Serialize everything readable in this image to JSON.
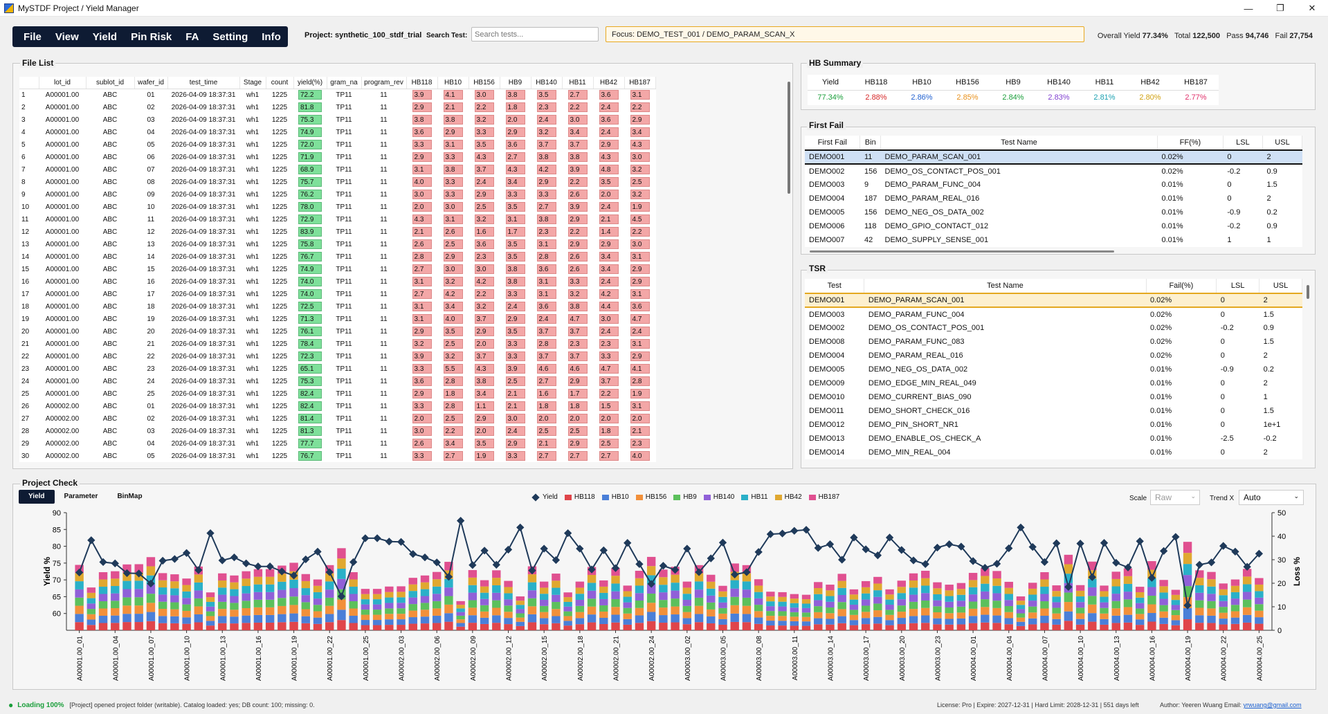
{
  "window": {
    "title": "MySTDF Project / Yield Manager",
    "min": "—",
    "max": "❐",
    "close": "✕"
  },
  "menu": [
    "File",
    "View",
    "Yield",
    "Pin Risk",
    "FA",
    "Setting",
    "Info"
  ],
  "toolbar": {
    "project": "Project: synthetic_100_stdf_trial",
    "search_label": "Search Test:",
    "search_placeholder": "Search tests...",
    "focus": "Focus: DEMO_TEST_001 / DEMO_PARAM_SCAN_X",
    "overall_label": "Overall Yield",
    "overall": "77.34%",
    "total_label": "Total",
    "total": "122,500",
    "pass_label": "Pass",
    "pass": "94,746",
    "fail_label": "Fail",
    "fail": "27,754"
  },
  "file_list": {
    "title": "File List",
    "columns": [
      "lot_id",
      "sublot_id",
      "wafer_id",
      "test_time",
      "Stage",
      "count",
      "yield(%)",
      "gram_na",
      "program_rev",
      "HB118",
      "HB10",
      "HB156",
      "HB9",
      "HB140",
      "HB11",
      "HB42",
      "HB187"
    ],
    "rows": [
      [
        "1",
        "A00001.00",
        "ABC",
        "01",
        "2026-04-09 18:37:31",
        "wh1",
        "1225",
        "72.2",
        "TP11",
        "11",
        "3.9",
        "4.1",
        "3.0",
        "3.8",
        "3.5",
        "2.7",
        "3.6",
        "3.1"
      ],
      [
        "2",
        "A00001.00",
        "ABC",
        "02",
        "2026-04-09 18:37:31",
        "wh1",
        "1225",
        "81.8",
        "TP11",
        "11",
        "2.9",
        "2.1",
        "2.2",
        "1.8",
        "2.3",
        "2.2",
        "2.4",
        "2.2"
      ],
      [
        "3",
        "A00001.00",
        "ABC",
        "03",
        "2026-04-09 18:37:31",
        "wh1",
        "1225",
        "75.3",
        "TP11",
        "11",
        "3.8",
        "3.8",
        "3.2",
        "2.0",
        "2.4",
        "3.0",
        "3.6",
        "2.9"
      ],
      [
        "4",
        "A00001.00",
        "ABC",
        "04",
        "2026-04-09 18:37:31",
        "wh1",
        "1225",
        "74.9",
        "TP11",
        "11",
        "3.6",
        "2.9",
        "3.3",
        "2.9",
        "3.2",
        "3.4",
        "2.4",
        "3.4"
      ],
      [
        "5",
        "A00001.00",
        "ABC",
        "05",
        "2026-04-09 18:37:31",
        "wh1",
        "1225",
        "72.0",
        "TP11",
        "11",
        "3.3",
        "3.1",
        "3.5",
        "3.6",
        "3.7",
        "3.7",
        "2.9",
        "4.3"
      ],
      [
        "6",
        "A00001.00",
        "ABC",
        "06",
        "2026-04-09 18:37:31",
        "wh1",
        "1225",
        "71.9",
        "TP11",
        "11",
        "2.9",
        "3.3",
        "4.3",
        "2.7",
        "3.8",
        "3.8",
        "4.3",
        "3.0"
      ],
      [
        "7",
        "A00001.00",
        "ABC",
        "07",
        "2026-04-09 18:37:31",
        "wh1",
        "1225",
        "68.9",
        "TP11",
        "11",
        "3.1",
        "3.8",
        "3.7",
        "4.3",
        "4.2",
        "3.9",
        "4.8",
        "3.2"
      ],
      [
        "8",
        "A00001.00",
        "ABC",
        "08",
        "2026-04-09 18:37:31",
        "wh1",
        "1225",
        "75.7",
        "TP11",
        "11",
        "4.0",
        "3.3",
        "2.4",
        "3.4",
        "2.9",
        "2.2",
        "3.5",
        "2.5"
      ],
      [
        "9",
        "A00001.00",
        "ABC",
        "09",
        "2026-04-09 18:37:31",
        "wh1",
        "1225",
        "76.2",
        "TP11",
        "11",
        "3.0",
        "3.3",
        "2.9",
        "3.3",
        "3.3",
        "2.6",
        "2.0",
        "3.2"
      ],
      [
        "10",
        "A00001.00",
        "ABC",
        "10",
        "2026-04-09 18:37:31",
        "wh1",
        "1225",
        "78.0",
        "TP11",
        "11",
        "2.0",
        "3.0",
        "2.5",
        "3.5",
        "2.7",
        "3.9",
        "2.4",
        "1.9"
      ],
      [
        "11",
        "A00001.00",
        "ABC",
        "11",
        "2026-04-09 18:37:31",
        "wh1",
        "1225",
        "72.9",
        "TP11",
        "11",
        "4.3",
        "3.1",
        "3.2",
        "3.1",
        "3.8",
        "2.9",
        "2.1",
        "4.5"
      ],
      [
        "12",
        "A00001.00",
        "ABC",
        "12",
        "2026-04-09 18:37:31",
        "wh1",
        "1225",
        "83.9",
        "TP11",
        "11",
        "2.1",
        "2.6",
        "1.6",
        "1.7",
        "2.3",
        "2.2",
        "1.4",
        "2.2"
      ],
      [
        "13",
        "A00001.00",
        "ABC",
        "13",
        "2026-04-09 18:37:31",
        "wh1",
        "1225",
        "75.8",
        "TP11",
        "11",
        "2.6",
        "2.5",
        "3.6",
        "3.5",
        "3.1",
        "2.9",
        "2.9",
        "3.0"
      ],
      [
        "14",
        "A00001.00",
        "ABC",
        "14",
        "2026-04-09 18:37:31",
        "wh1",
        "1225",
        "76.7",
        "TP11",
        "11",
        "2.8",
        "2.9",
        "2.3",
        "3.5",
        "2.8",
        "2.6",
        "3.4",
        "3.1"
      ],
      [
        "15",
        "A00001.00",
        "ABC",
        "15",
        "2026-04-09 18:37:31",
        "wh1",
        "1225",
        "74.9",
        "TP11",
        "11",
        "2.7",
        "3.0",
        "3.0",
        "3.8",
        "3.6",
        "2.6",
        "3.4",
        "2.9"
      ],
      [
        "16",
        "A00001.00",
        "ABC",
        "16",
        "2026-04-09 18:37:31",
        "wh1",
        "1225",
        "74.0",
        "TP11",
        "11",
        "3.1",
        "3.2",
        "4.2",
        "3.8",
        "3.1",
        "3.3",
        "2.4",
        "2.9"
      ],
      [
        "17",
        "A00001.00",
        "ABC",
        "17",
        "2026-04-09 18:37:31",
        "wh1",
        "1225",
        "74.0",
        "TP11",
        "11",
        "2.7",
        "4.2",
        "2.2",
        "3.3",
        "3.1",
        "3.2",
        "4.2",
        "3.1"
      ],
      [
        "18",
        "A00001.00",
        "ABC",
        "18",
        "2026-04-09 18:37:31",
        "wh1",
        "1225",
        "72.5",
        "TP11",
        "11",
        "3.1",
        "3.4",
        "3.2",
        "2.4",
        "3.6",
        "3.8",
        "4.4",
        "3.6"
      ],
      [
        "19",
        "A00001.00",
        "ABC",
        "19",
        "2026-04-09 18:37:31",
        "wh1",
        "1225",
        "71.3",
        "TP11",
        "11",
        "3.1",
        "4.0",
        "3.7",
        "2.9",
        "2.4",
        "4.7",
        "3.0",
        "4.7"
      ],
      [
        "20",
        "A00001.00",
        "ABC",
        "20",
        "2026-04-09 18:37:31",
        "wh1",
        "1225",
        "76.1",
        "TP11",
        "11",
        "2.9",
        "3.5",
        "2.9",
        "3.5",
        "3.7",
        "3.7",
        "2.4",
        "2.4"
      ],
      [
        "21",
        "A00001.00",
        "ABC",
        "21",
        "2026-04-09 18:37:31",
        "wh1",
        "1225",
        "78.4",
        "TP11",
        "11",
        "3.2",
        "2.5",
        "2.0",
        "3.3",
        "2.8",
        "2.3",
        "2.3",
        "3.1"
      ],
      [
        "22",
        "A00001.00",
        "ABC",
        "22",
        "2026-04-09 18:37:31",
        "wh1",
        "1225",
        "72.3",
        "TP11",
        "11",
        "3.9",
        "3.2",
        "3.7",
        "3.3",
        "3.7",
        "3.7",
        "3.3",
        "2.9"
      ],
      [
        "23",
        "A00001.00",
        "ABC",
        "23",
        "2026-04-09 18:37:31",
        "wh1",
        "1225",
        "65.1",
        "TP11",
        "11",
        "3.3",
        "5.5",
        "4.3",
        "3.9",
        "4.6",
        "4.6",
        "4.7",
        "4.1"
      ],
      [
        "24",
        "A00001.00",
        "ABC",
        "24",
        "2026-04-09 18:37:31",
        "wh1",
        "1225",
        "75.3",
        "TP11",
        "11",
        "3.6",
        "2.8",
        "3.8",
        "2.5",
        "2.7",
        "2.9",
        "3.7",
        "2.8"
      ],
      [
        "25",
        "A00001.00",
        "ABC",
        "25",
        "2026-04-09 18:37:31",
        "wh1",
        "1225",
        "82.4",
        "TP11",
        "11",
        "2.9",
        "1.8",
        "3.4",
        "2.1",
        "1.6",
        "1.7",
        "2.2",
        "1.9"
      ],
      [
        "26",
        "A00002.00",
        "ABC",
        "01",
        "2026-04-09 18:37:31",
        "wh1",
        "1225",
        "82.4",
        "TP11",
        "11",
        "3.3",
        "2.8",
        "1.1",
        "2.1",
        "1.8",
        "1.8",
        "1.5",
        "3.1"
      ],
      [
        "27",
        "A00002.00",
        "ABC",
        "02",
        "2026-04-09 18:37:31",
        "wh1",
        "1225",
        "81.4",
        "TP11",
        "11",
        "2.0",
        "2.5",
        "2.9",
        "3.0",
        "2.0",
        "2.0",
        "2.0",
        "2.0"
      ],
      [
        "28",
        "A00002.00",
        "ABC",
        "03",
        "2026-04-09 18:37:31",
        "wh1",
        "1225",
        "81.3",
        "TP11",
        "11",
        "3.0",
        "2.2",
        "2.0",
        "2.4",
        "2.5",
        "2.5",
        "1.8",
        "2.1"
      ],
      [
        "29",
        "A00002.00",
        "ABC",
        "04",
        "2026-04-09 18:37:31",
        "wh1",
        "1225",
        "77.7",
        "TP11",
        "11",
        "2.6",
        "3.4",
        "3.5",
        "2.9",
        "2.1",
        "2.9",
        "2.5",
        "2.3"
      ],
      [
        "30",
        "A00002.00",
        "ABC",
        "05",
        "2026-04-09 18:37:31",
        "wh1",
        "1225",
        "76.7",
        "TP11",
        "11",
        "3.3",
        "2.7",
        "1.9",
        "3.3",
        "2.7",
        "2.7",
        "2.7",
        "4.0"
      ]
    ]
  },
  "hb_summary": {
    "title": "HB Summary",
    "headers": [
      "Yield",
      "HB118",
      "HB10",
      "HB156",
      "HB9",
      "HB140",
      "HB11",
      "HB42",
      "HB187"
    ],
    "values": [
      "77.34%",
      "2.88%",
      "2.86%",
      "2.85%",
      "2.84%",
      "2.83%",
      "2.81%",
      "2.80%",
      "2.77%"
    ],
    "colors": [
      "#1a9e3a",
      "#d62728",
      "#2060d0",
      "#e8901a",
      "#1a9e3a",
      "#8040d0",
      "#1aa0b0",
      "#d0a010",
      "#e0306a"
    ]
  },
  "first_fail": {
    "title": "First Fail",
    "headers": [
      "First Fail",
      "Bin",
      "Test Name",
      "FF(%)",
      "LSL",
      "USL"
    ],
    "rows": [
      [
        "DEMO001",
        "11",
        "DEMO_PARAM_SCAN_001",
        "0.02%",
        "0",
        "2"
      ],
      [
        "DEMO002",
        "156",
        "DEMO_OS_CONTACT_POS_001",
        "0.02%",
        "-0.2",
        "0.9"
      ],
      [
        "DEMO003",
        "9",
        "DEMO_PARAM_FUNC_004",
        "0.01%",
        "0",
        "1.5"
      ],
      [
        "DEMO004",
        "187",
        "DEMO_PARAM_REAL_016",
        "0.01%",
        "0",
        "2"
      ],
      [
        "DEMO005",
        "156",
        "DEMO_NEG_OS_DATA_002",
        "0.01%",
        "-0.9",
        "0.2"
      ],
      [
        "DEMO006",
        "118",
        "DEMO_GPIO_CONTACT_012",
        "0.01%",
        "-0.2",
        "0.9"
      ],
      [
        "DEMO007",
        "42",
        "DEMO_SUPPLY_SENSE_001",
        "0.01%",
        "1",
        "1"
      ]
    ]
  },
  "tsr": {
    "title": "TSR",
    "headers": [
      "Test",
      "Test Name",
      "Fail(%)",
      "LSL",
      "USL"
    ],
    "rows": [
      [
        "DEMO001",
        "DEMO_PARAM_SCAN_001",
        "0.02%",
        "0",
        "2"
      ],
      [
        "DEMO003",
        "DEMO_PARAM_FUNC_004",
        "0.02%",
        "0",
        "1.5"
      ],
      [
        "DEMO002",
        "DEMO_OS_CONTACT_POS_001",
        "0.02%",
        "-0.2",
        "0.9"
      ],
      [
        "DEMO008",
        "DEMO_PARAM_FUNC_083",
        "0.02%",
        "0",
        "1.5"
      ],
      [
        "DEMO004",
        "DEMO_PARAM_REAL_016",
        "0.02%",
        "0",
        "2"
      ],
      [
        "DEMO005",
        "DEMO_NEG_OS_DATA_002",
        "0.01%",
        "-0.9",
        "0.2"
      ],
      [
        "DEMO009",
        "DEMO_EDGE_MIN_REAL_049",
        "0.01%",
        "0",
        "2"
      ],
      [
        "DEMO010",
        "DEMO_CURRENT_BIAS_090",
        "0.01%",
        "0",
        "1"
      ],
      [
        "DEMO011",
        "DEMO_SHORT_CHECK_016",
        "0.01%",
        "0",
        "1.5"
      ],
      [
        "DEMO012",
        "DEMO_PIN_SHORT_NR1",
        "0.01%",
        "0",
        "1e+1"
      ],
      [
        "DEMO013",
        "DEMO_ENABLE_OS_CHECK_A",
        "0.01%",
        "-2.5",
        "-0.2"
      ],
      [
        "DEMO014",
        "DEMO_MIN_REAL_004",
        "0.01%",
        "0",
        "2"
      ]
    ]
  },
  "project_check": {
    "title": "Project Check",
    "tabs": [
      "Yield",
      "Parameter",
      "BinMap"
    ],
    "scale_label": "Scale",
    "scale_value": "Raw",
    "trend_label": "Trend X",
    "trend_value": "Auto"
  },
  "chart_data": {
    "type": "bar",
    "stacked": true,
    "ylabel": "Yield %",
    "y2label": "Loss %",
    "ylim": [
      55,
      90
    ],
    "y2lim": [
      0,
      50
    ],
    "yticks": [
      60,
      65,
      70,
      75,
      80,
      85,
      90
    ],
    "y2ticks": [
      0,
      10,
      20,
      30,
      40,
      50
    ],
    "legend": [
      "Yield",
      "HB118",
      "HB10",
      "HB156",
      "HB9",
      "HB140",
      "HB11",
      "HB42",
      "HB187"
    ],
    "colors": {
      "Yield": "#1f3a5a",
      "HB118": "#e0454a",
      "HB10": "#4a7fd8",
      "HB156": "#f2903a",
      "HB9": "#5cc05c",
      "HB140": "#9060d8",
      "HB11": "#2ab0c8",
      "HB42": "#e0a830",
      "HB187": "#e05090"
    },
    "xticks": [
      "A00001.00_01",
      "A00001.00_04",
      "A00001.00_07",
      "A00001.00_10",
      "A00001.00_13",
      "A00001.00_16",
      "A00001.00_19",
      "A00001.00_22",
      "A00001.00_25",
      "A00002.00_03",
      "A00002.00_06",
      "A00002.00_09",
      "A00002.00_12",
      "A00002.00_15",
      "A00002.00_18",
      "A00002.00_21",
      "A00002.00_24",
      "A00003.00_02",
      "A00003.00_05",
      "A00003.00_08",
      "A00003.00_11",
      "A00003.00_14",
      "A00003.00_17",
      "A00003.00_20",
      "A00003.00_23",
      "A00004.00_01",
      "A00004.00_04",
      "A00004.00_07",
      "A00004.00_10",
      "A00004.00_13",
      "A00004.00_16",
      "A00004.00_19",
      "A00004.00_22",
      "A00004.00_25"
    ],
    "yield": [
      72.2,
      81.8,
      75.3,
      74.9,
      72.0,
      71.9,
      68.9,
      75.7,
      76.2,
      78.0,
      72.9,
      83.9,
      75.8,
      76.7,
      74.9,
      74.0,
      74.0,
      72.5,
      71.3,
      76.1,
      78.4,
      72.3,
      65.1,
      75.3,
      82.4,
      82.4,
      81.4,
      81.3,
      77.7,
      76.7,
      75.2,
      70.9,
      87.6,
      74.4,
      78.7,
      74.5,
      79.0,
      85.6,
      72.8,
      79.3,
      75.9,
      83.9,
      79.3,
      73.1,
      78.8,
      73.5,
      81.0,
      74.7,
      68.8,
      74.2,
      73.0,
      79.3,
      72.3,
      76.4,
      81.1,
      71.6,
      72.3,
      78.3,
      83.6,
      83.8,
      84.6,
      84.9,
      79.5,
      80.6,
      76.0,
      82.6,
      79.1,
      77.3,
      82.6,
      78.9,
      75.8,
      74.7,
      79.6,
      80.6,
      79.9,
      75.6,
      73.6,
      74.8,
      79.4,
      85.6,
      79.8,
      75.3,
      80.9,
      67.9,
      80.8,
      70.8,
      81.0,
      75.1,
      73.7,
      81.5,
      70.6,
      78.6,
      82.8,
      62.4,
      74.5,
      75.2,
      80.1,
      78.4,
      73.9,
      77.8
    ]
  },
  "status": {
    "loading": "Loading 100%",
    "message": "[Project] opened project folder (writable). Catalog loaded: yes; DB count: 100; missing: 0.",
    "license": "License: Pro | Expire: 2027-12-31 | Hard Limit: 2028-12-31 | 551 days left",
    "author": "Author: Yeeren Wuang Email:",
    "email": "yrwuang@gmail.com"
  }
}
